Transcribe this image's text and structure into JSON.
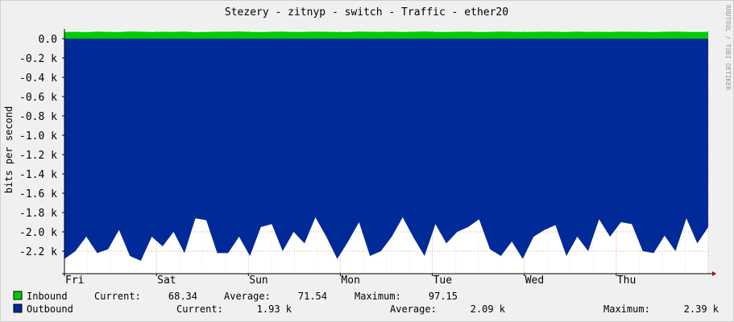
{
  "header": {
    "title": "Stezery - zitnyp - switch - Traffic - ether20"
  },
  "watermark": "RRDTOOL / TOBI OETIKER",
  "colors": {
    "background": "#f0f0f0",
    "canvas": "#ffffff",
    "inbound": "#00cc00",
    "outbound": "#002a97",
    "grid": "#e08080",
    "axis": "#000000"
  },
  "chart_data": {
    "type": "area",
    "title": "Stezery - zitnyp - switch - Traffic - ether20",
    "ylabel": "bits per second",
    "xlabel": "",
    "ylim": [
      -2.4,
      0.0
    ],
    "y_unit": "k",
    "y_ticks": [
      {
        "value": 0.0,
        "label": "0.0"
      },
      {
        "value": -0.2,
        "label": "-0.2 k"
      },
      {
        "value": -0.4,
        "label": "-0.4 k"
      },
      {
        "value": -0.6,
        "label": "-0.6 k"
      },
      {
        "value": -0.8,
        "label": "-0.8 k"
      },
      {
        "value": -1.0,
        "label": "-1.0 k"
      },
      {
        "value": -1.2,
        "label": "-1.2 k"
      },
      {
        "value": -1.4,
        "label": "-1.4 k"
      },
      {
        "value": -1.6,
        "label": "-1.6 k"
      },
      {
        "value": -1.8,
        "label": "-1.8 k"
      },
      {
        "value": -2.0,
        "label": "-2.0 k"
      },
      {
        "value": -2.2,
        "label": "-2.2 k"
      }
    ],
    "x_range_days": [
      0,
      7
    ],
    "x_ticks": [
      {
        "day": 0,
        "label": "Fri"
      },
      {
        "day": 1,
        "label": "Sat"
      },
      {
        "day": 2,
        "label": "Sun"
      },
      {
        "day": 3,
        "label": "Mon"
      },
      {
        "day": 4,
        "label": "Tue"
      },
      {
        "day": 5,
        "label": "Wed"
      },
      {
        "day": 6,
        "label": "Thu"
      }
    ],
    "grid": true,
    "legend_position": "bottom-left",
    "series": [
      {
        "name": "Inbound",
        "color": "#00cc00",
        "direction": "positive",
        "values_bps": [
          70,
          72,
          68,
          74,
          71,
          69,
          75,
          73,
          70,
          72,
          71,
          74,
          68,
          70,
          73,
          72,
          75,
          71,
          69,
          72,
          74,
          70,
          71,
          73,
          72,
          70,
          69,
          74,
          72,
          71,
          73,
          70,
          72,
          75,
          71,
          70,
          72,
          73,
          69,
          71,
          74,
          72,
          70,
          71,
          73,
          72,
          70,
          74,
          71,
          72,
          70,
          73,
          72,
          71,
          69,
          72,
          74,
          71,
          70,
          72
        ],
        "current": "68.34",
        "average": "71.54",
        "maximum": "97.15"
      },
      {
        "name": "Outbound",
        "color": "#002a97",
        "direction": "negative",
        "values_k": [
          2.28,
          2.2,
          2.05,
          2.22,
          2.18,
          1.98,
          2.25,
          2.3,
          2.05,
          2.15,
          2.0,
          2.22,
          1.86,
          1.88,
          2.22,
          2.22,
          2.05,
          2.25,
          1.95,
          1.92,
          2.2,
          2.0,
          2.12,
          1.85,
          2.05,
          2.28,
          2.1,
          1.9,
          2.25,
          2.2,
          2.05,
          1.85,
          2.06,
          2.25,
          1.92,
          2.12,
          2.0,
          1.95,
          1.87,
          2.18,
          2.25,
          2.1,
          2.28,
          2.05,
          1.98,
          1.93,
          2.25,
          2.05,
          2.2,
          1.87,
          2.05,
          1.9,
          1.92,
          2.2,
          2.22,
          2.04,
          2.2,
          1.86,
          2.12,
          1.95
        ],
        "current": "1.93 k",
        "average": "2.09 k",
        "maximum": "2.39 k"
      }
    ]
  },
  "legend": [
    {
      "label": "Inbound",
      "color": "#00cc00",
      "current_label": "Current:",
      "current": "68.34",
      "average_label": "Average:",
      "average": "71.54",
      "maximum_label": "Maximum:",
      "maximum": "97.15"
    },
    {
      "label": "Outbound",
      "color": "#002a97",
      "current_label": "Current:",
      "current": "1.93 k",
      "average_label": "Average:",
      "average": "2.09 k",
      "maximum_label": "Maximum:",
      "maximum": "2.39 k"
    }
  ]
}
